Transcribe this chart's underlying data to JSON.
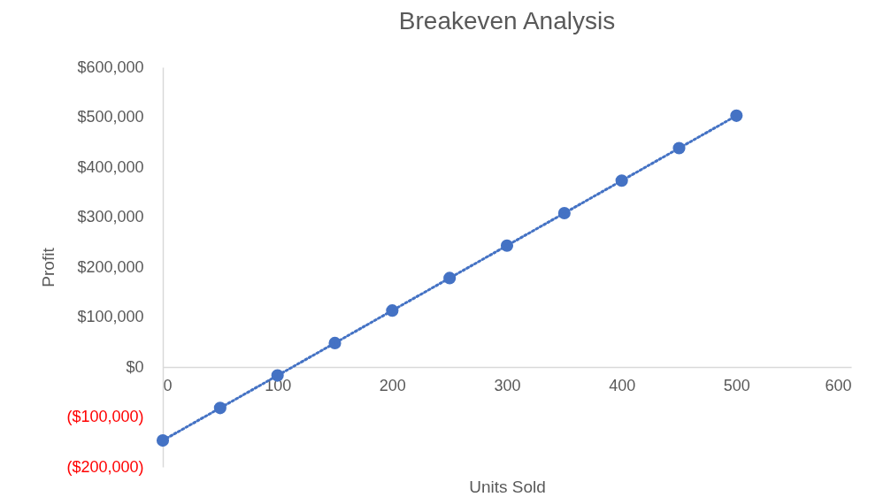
{
  "chart_data": {
    "type": "scatter",
    "title": "Breakeven Analysis",
    "xlabel": "Units Sold",
    "ylabel": "Profit",
    "x": [
      0,
      50,
      100,
      150,
      200,
      250,
      300,
      350,
      400,
      450,
      500
    ],
    "series": [
      {
        "color": "#4472c4",
        "values": [
          -147000,
          -82000,
          -17000,
          48000,
          113000,
          178000,
          243000,
          308000,
          373000,
          438000,
          503000
        ]
      },
      {
        "type": "line",
        "color": "#4472c4",
        "marker": "none",
        "x": [
          0,
          500
        ],
        "values": [
          -147000,
          503000
        ]
      }
    ],
    "xlim": [
      0,
      600
    ],
    "xticks": [
      0,
      100,
      200,
      300,
      400,
      500,
      600
    ],
    "ylim": [
      -200000,
      600000
    ],
    "yticks": [
      {
        "value": -200000,
        "label": "($200,000)"
      },
      {
        "value": -100000,
        "label": "($100,000)"
      },
      {
        "value": 0,
        "label": "$0"
      },
      {
        "value": 100000,
        "label": "$100,000"
      },
      {
        "value": 200000,
        "label": "$200,000"
      },
      {
        "value": 300000,
        "label": "$300,000"
      },
      {
        "value": 400000,
        "label": "$400,000"
      },
      {
        "value": 500000,
        "label": "$500,000"
      },
      {
        "value": 600000,
        "label": "$600,000"
      }
    ],
    "grid": false,
    "legend": false,
    "marker": "circle",
    "line_style": "dotted"
  }
}
